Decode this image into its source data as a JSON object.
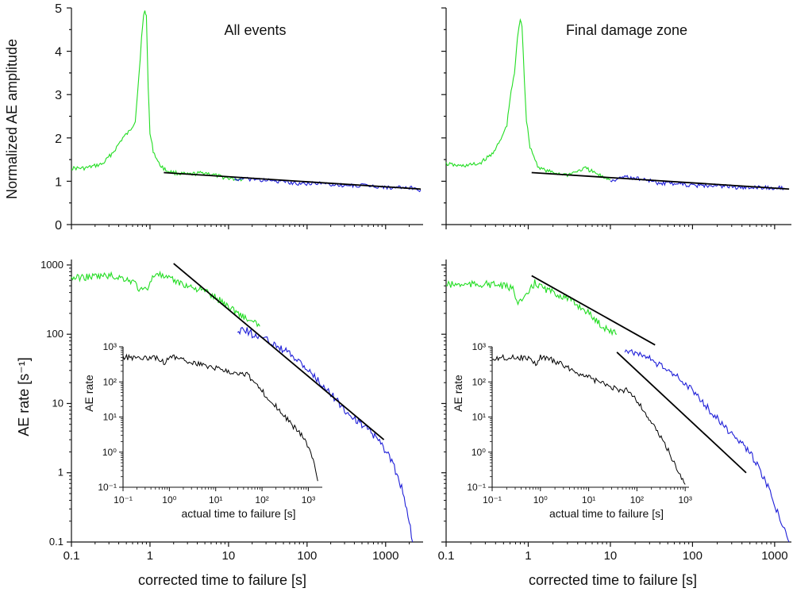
{
  "figure": {
    "ylabel_top": "Normalized AE amplitude",
    "ylabel_bottom": "AE rate [s⁻¹]",
    "xlabel_left": "corrected time to failure [s]",
    "xlabel_right": "corrected time to failure  [s]"
  },
  "colors": {
    "early": "#22dd22",
    "late": "#1f1fd8",
    "fit": "#000000",
    "inset": "#000000",
    "axis": "#111111"
  },
  "chart_data": [
    {
      "id": "top-left",
      "type": "line",
      "title": "All events",
      "ylabel": "Normalized AE amplitude",
      "xscale": "log",
      "xlim": [
        0.1,
        3000
      ],
      "ylim": [
        0,
        5
      ],
      "xticks": [
        0.1,
        1,
        10,
        100,
        1000
      ],
      "yticks": [
        0,
        1,
        2,
        3,
        4,
        5
      ],
      "series": [
        {
          "color": "green",
          "x": [
            0.1,
            0.15,
            0.25,
            0.35,
            0.45,
            0.55,
            0.65,
            0.72,
            0.78,
            0.83,
            0.86,
            0.9,
            0.95,
            1.0,
            1.1,
            1.3,
            1.6,
            2,
            3,
            5,
            8,
            12,
            15
          ],
          "y": [
            1.3,
            1.3,
            1.4,
            1.7,
            2.0,
            2.15,
            2.4,
            3.4,
            4.3,
            4.8,
            4.95,
            4.8,
            3.2,
            2.1,
            1.7,
            1.4,
            1.25,
            1.2,
            1.15,
            1.2,
            1.1,
            1.05,
            1.05
          ]
        },
        {
          "color": "blue",
          "x": [
            12,
            20,
            40,
            80,
            150,
            300,
            600,
            1200,
            2000,
            2800
          ],
          "y": [
            1.05,
            1.05,
            1.0,
            0.95,
            0.95,
            0.9,
            0.9,
            0.85,
            0.85,
            0.8
          ]
        }
      ],
      "fit": {
        "x": [
          1.5,
          2800
        ],
        "y": [
          1.2,
          0.82
        ]
      }
    },
    {
      "id": "top-right",
      "type": "line",
      "title": "Final damage zone",
      "xscale": "log",
      "xlim": [
        0.1,
        1600
      ],
      "ylim": [
        0,
        5
      ],
      "xticks": [
        0.1,
        1,
        10,
        100,
        1000
      ],
      "series": [
        {
          "color": "green",
          "x": [
            0.1,
            0.15,
            0.25,
            0.35,
            0.45,
            0.55,
            0.6,
            0.68,
            0.74,
            0.8,
            0.84,
            0.9,
            0.95,
            1.05,
            1.3,
            1.6,
            2,
            3,
            5,
            8,
            10
          ],
          "y": [
            1.4,
            1.35,
            1.4,
            1.6,
            1.9,
            2.3,
            2.9,
            3.5,
            4.3,
            4.75,
            4.6,
            3.3,
            2.4,
            1.8,
            1.35,
            1.25,
            1.2,
            1.15,
            1.3,
            1.1,
            1.05
          ]
        },
        {
          "color": "blue",
          "x": [
            10,
            15,
            25,
            40,
            60,
            100,
            200,
            400,
            800,
            1300
          ],
          "y": [
            1.0,
            1.1,
            1.05,
            0.95,
            0.95,
            0.9,
            0.9,
            0.85,
            0.85,
            0.85
          ]
        }
      ],
      "fit": {
        "x": [
          1.1,
          1500
        ],
        "y": [
          1.2,
          0.82
        ]
      }
    },
    {
      "id": "bottom-left",
      "type": "line",
      "ylabel": "AE rate [s⁻¹]",
      "xlabel": "corrected time to failure [s]",
      "xscale": "log",
      "xlim": [
        0.1,
        3000
      ],
      "yscale": "log",
      "ylim": [
        0.1,
        1200
      ],
      "xticks": [
        0.1,
        1,
        10,
        100,
        1000
      ],
      "yticks": [
        0.1,
        1,
        10,
        100,
        1000
      ],
      "series": [
        {
          "color": "green",
          "x": [
            0.1,
            0.2,
            0.3,
            0.45,
            0.55,
            0.65,
            0.75,
            0.9,
            1.2,
            1.5,
            2,
            3,
            5,
            8,
            12,
            18,
            25
          ],
          "y": [
            650,
            680,
            700,
            650,
            600,
            550,
            420,
            450,
            800,
            650,
            600,
            500,
            420,
            300,
            220,
            160,
            130
          ]
        },
        {
          "color": "blue",
          "x": [
            13,
            16,
            20,
            30,
            50,
            80,
            120,
            200,
            300,
            500,
            700,
            900,
            1200,
            1600,
            2000,
            2200
          ],
          "y": [
            110,
            120,
            100,
            85,
            60,
            40,
            25,
            14,
            8,
            5,
            3.5,
            2.5,
            1.5,
            0.6,
            0.2,
            0.1
          ]
        }
      ],
      "fit": {
        "x": [
          2,
          950
        ],
        "y": [
          1050,
          3
        ]
      },
      "inset": {
        "xlabel": "actual time to failure [s]",
        "ylabel": "AE rate",
        "xscale": "log",
        "xlim": [
          0.1,
          2000
        ],
        "yscale": "log",
        "ylim": [
          0.1,
          1000
        ],
        "xticks": [
          0.1,
          1,
          10,
          100,
          1000
        ],
        "yticks": [
          0.1,
          1,
          10,
          100,
          1000
        ],
        "tick_labels": [
          "10⁻¹",
          "10⁰",
          "10¹",
          "10²",
          "10³"
        ],
        "x": [
          0.1,
          0.3,
          0.6,
          0.8,
          1.0,
          1.5,
          3,
          8,
          20,
          40,
          50,
          60,
          100,
          200,
          400,
          800,
          1200,
          1600
        ],
        "y": [
          500,
          500,
          480,
          320,
          550,
          500,
          350,
          260,
          200,
          170,
          160,
          110,
          55,
          20,
          7,
          2.5,
          0.8,
          0.15
        ]
      }
    },
    {
      "id": "bottom-right",
      "type": "line",
      "xlabel": "corrected time to failure  [s]",
      "xscale": "log",
      "xlim": [
        0.1,
        1600
      ],
      "yscale": "log",
      "ylim": [
        0.1,
        1200
      ],
      "xticks": [
        0.1,
        1,
        10,
        100,
        1000
      ],
      "series": [
        {
          "color": "green",
          "x": [
            0.1,
            0.2,
            0.3,
            0.45,
            0.55,
            0.65,
            0.75,
            0.9,
            1.2,
            1.6,
            2,
            3,
            5,
            8,
            12
          ],
          "y": [
            520,
            520,
            530,
            510,
            480,
            450,
            300,
            320,
            550,
            450,
            400,
            330,
            220,
            130,
            100
          ]
        },
        {
          "color": "blue",
          "x": [
            15,
            20,
            30,
            50,
            80,
            120,
            200,
            300,
            500,
            800,
            1200,
            1500
          ],
          "y": [
            60,
            55,
            45,
            30,
            20,
            12,
            6,
            3.5,
            2,
            0.7,
            0.2,
            0.1
          ]
        }
      ],
      "fits": [
        {
          "x": [
            1.1,
            35
          ],
          "y": [
            700,
            70
          ]
        },
        {
          "x": [
            12,
            450
          ],
          "y": [
            55,
            1
          ]
        }
      ],
      "inset": {
        "xlabel": "actual time to failure [s]",
        "ylabel": "AE rate",
        "xscale": "log",
        "xlim": [
          0.1,
          1200
        ],
        "yscale": "log",
        "ylim": [
          0.1,
          1000
        ],
        "xticks": [
          0.1,
          1,
          10,
          100,
          1000
        ],
        "yticks": [
          0.1,
          1,
          10,
          100,
          1000
        ],
        "tick_labels": [
          "10⁻¹",
          "10⁰",
          "10¹",
          "10²",
          "10³"
        ],
        "x": [
          0.1,
          0.3,
          0.6,
          0.8,
          1.0,
          1.5,
          3,
          8,
          20,
          40,
          50,
          60,
          100,
          200,
          400,
          700,
          1000
        ],
        "y": [
          480,
          500,
          470,
          300,
          520,
          460,
          300,
          150,
          90,
          60,
          50,
          70,
          30,
          7,
          1.5,
          0.3,
          0.12
        ]
      }
    }
  ]
}
